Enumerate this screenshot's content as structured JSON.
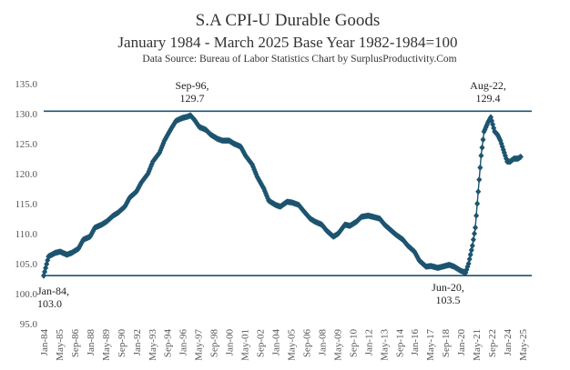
{
  "chart_data": {
    "type": "line",
    "title": "S.A CPI-U Durable Goods",
    "subtitle": "January  1984 - March  2025  Base Year 1982-1984=100",
    "source": "Data Source: Bureau of Labor Statistics   Chart by SurplusProductivity.Com",
    "xlabel": "",
    "ylabel": "",
    "ylim": [
      95,
      135
    ],
    "y_ticks": [
      "95.0",
      "100.0",
      "105.0",
      "110.0",
      "115.0",
      "120.0",
      "125.0",
      "130.0",
      "135.0"
    ],
    "x_tick_labels": [
      "Jan-84",
      "May-85",
      "Sep-86",
      "Jan-88",
      "May-89",
      "Sep-90",
      "Jan-92",
      "May-93",
      "Sep-94",
      "Jan-96",
      "May-97",
      "Sep-98",
      "Jan-00",
      "May-01",
      "Sep-02",
      "Jan-04",
      "May-05",
      "Sep-06",
      "Jan-08",
      "May-09",
      "Sep-10",
      "Jan-12",
      "May-13",
      "Sep-14",
      "Jan-16",
      "May-17",
      "Sep-18",
      "Jan-20",
      "May-21",
      "Sep-22",
      "Jan-24",
      "May-25"
    ],
    "grid": false,
    "line_color": "#1d5470",
    "reference_lines": [
      {
        "y": 130.4,
        "color": "#1d5470"
      },
      {
        "y": 103.0,
        "color": "#1d5470"
      }
    ],
    "annotations": [
      {
        "lines": [
          "Sep-96,",
          "129.7"
        ]
      },
      {
        "lines": [
          "Aug-22,",
          "129.4"
        ]
      },
      {
        "lines": [
          "Jan-84,",
          "103.0"
        ]
      },
      {
        "lines": [
          "Jun-20,",
          "103.5"
        ]
      }
    ],
    "series": [
      {
        "x": [
          "1984-01",
          "1984-06",
          "1985-01",
          "1985-06",
          "1986-01",
          "1986-06",
          "1987-01",
          "1987-06",
          "1988-01",
          "1988-06",
          "1989-01",
          "1989-06",
          "1990-01",
          "1990-06",
          "1991-01",
          "1991-06",
          "1992-01",
          "1992-06",
          "1993-01",
          "1993-06",
          "1994-01",
          "1994-06",
          "1995-01",
          "1995-06",
          "1996-01",
          "1996-06",
          "1996-09",
          "1997-01",
          "1997-06",
          "1998-01",
          "1998-06",
          "1999-01",
          "1999-06",
          "2000-01",
          "2000-06",
          "2001-01",
          "2001-06",
          "2002-01",
          "2002-06",
          "2003-01",
          "2003-06",
          "2004-01",
          "2004-06",
          "2005-01",
          "2005-06",
          "2006-01",
          "2006-06",
          "2007-01",
          "2007-06",
          "2008-01",
          "2008-06",
          "2009-01",
          "2009-06",
          "2010-01",
          "2010-06",
          "2011-01",
          "2011-06",
          "2012-01",
          "2012-06",
          "2013-01",
          "2013-06",
          "2014-01",
          "2014-06",
          "2015-01",
          "2015-06",
          "2016-01",
          "2016-06",
          "2017-01",
          "2017-06",
          "2018-01",
          "2018-06",
          "2019-01",
          "2019-06",
          "2020-01",
          "2020-06",
          "2020-09",
          "2021-01",
          "2021-04",
          "2021-07",
          "2021-10",
          "2022-01",
          "2022-05",
          "2022-08",
          "2022-12",
          "2023-03",
          "2023-06",
          "2023-09",
          "2024-01",
          "2024-04",
          "2024-08",
          "2024-12",
          "2025-03"
        ],
        "values": [
          103.0,
          106.2,
          106.8,
          107.0,
          106.5,
          106.8,
          107.5,
          109.0,
          109.5,
          111.0,
          111.5,
          112.0,
          113.0,
          113.5,
          114.5,
          116.0,
          117.0,
          118.5,
          120.0,
          122.0,
          123.5,
          125.5,
          127.5,
          128.8,
          129.3,
          129.5,
          129.7,
          129.0,
          127.8,
          127.3,
          126.5,
          125.8,
          125.5,
          125.5,
          125.0,
          124.5,
          123.0,
          121.5,
          119.5,
          117.5,
          115.5,
          114.8,
          114.5,
          115.3,
          115.2,
          114.8,
          113.8,
          112.5,
          112.0,
          111.5,
          110.5,
          109.5,
          110.0,
          111.5,
          111.3,
          112.0,
          112.8,
          113.0,
          112.8,
          112.5,
          111.5,
          110.5,
          109.8,
          109.0,
          108.0,
          107.0,
          105.5,
          104.5,
          104.6,
          104.3,
          104.5,
          104.8,
          104.5,
          103.8,
          103.5,
          105.0,
          108.0,
          111.0,
          117.0,
          123.0,
          127.0,
          128.5,
          129.4,
          127.0,
          126.5,
          125.5,
          124.0,
          122.0,
          122.0,
          122.5,
          122.5,
          122.8
        ]
      }
    ]
  }
}
